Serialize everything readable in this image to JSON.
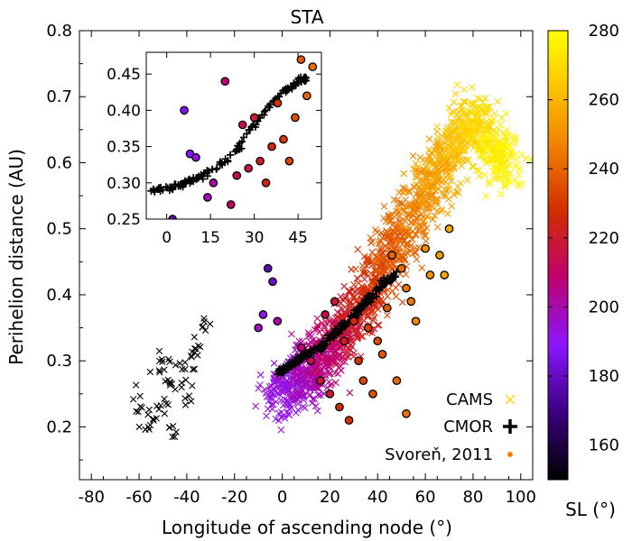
{
  "chart_data": {
    "type": "scatter",
    "title": "STA",
    "xlabel": "Longitude of ascending node (°)",
    "ylabel": "Perihelion distance (AU)",
    "xlim": [
      -85,
      105
    ],
    "ylim": [
      0.12,
      0.8
    ],
    "xticks": [
      -80,
      -60,
      -40,
      -20,
      0,
      20,
      40,
      60,
      80,
      100
    ],
    "yticks": [
      0.2,
      0.3,
      0.4,
      0.5,
      0.6,
      0.7,
      0.8
    ],
    "colorbar": {
      "label": "SL (°)",
      "range": [
        150,
        280
      ],
      "ticks": [
        160,
        180,
        200,
        220,
        240,
        260,
        280
      ],
      "palette": [
        "#000000",
        "#3b0080",
        "#8a16ff",
        "#c0006e",
        "#d32d00",
        "#f28500",
        "#ffd100",
        "#ffff00"
      ]
    },
    "series": [
      {
        "name": "CAMS",
        "marker": "x",
        "legend_color": "#ffd700",
        "trend": [
          [
            -3,
            0.24,
            190
          ],
          [
            5,
            0.27,
            193
          ],
          [
            12,
            0.29,
            200
          ],
          [
            18,
            0.31,
            206
          ],
          [
            25,
            0.34,
            213
          ],
          [
            32,
            0.38,
            221
          ],
          [
            40,
            0.43,
            229
          ],
          [
            48,
            0.48,
            236
          ],
          [
            56,
            0.53,
            243
          ],
          [
            64,
            0.58,
            250
          ],
          [
            72,
            0.63,
            257
          ],
          [
            80,
            0.67,
            264
          ],
          [
            88,
            0.62,
            271
          ],
          [
            95,
            0.6,
            278
          ]
        ],
        "black_cluster": [
          [
            -60,
            0.24
          ],
          [
            -55,
            0.22
          ],
          [
            -50,
            0.23
          ],
          [
            -45,
            0.26
          ],
          [
            -42,
            0.29
          ],
          [
            -38,
            0.3
          ],
          [
            -35,
            0.33
          ],
          [
            -33,
            0.35
          ],
          [
            -48,
            0.28
          ],
          [
            -52,
            0.3
          ],
          [
            -40,
            0.25
          ],
          [
            -57,
            0.2
          ],
          [
            -46,
            0.19
          ]
        ]
      },
      {
        "name": "CMOR",
        "marker": "+",
        "legend_color": "#000000",
        "points": [
          [
            -2,
            0.28,
            186
          ],
          [
            4,
            0.295,
            190
          ],
          [
            10,
            0.31,
            195
          ],
          [
            16,
            0.32,
            200
          ],
          [
            22,
            0.34,
            206
          ],
          [
            28,
            0.36,
            212
          ],
          [
            33,
            0.38,
            217
          ],
          [
            38,
            0.4,
            222
          ],
          [
            43,
            0.42,
            226
          ],
          [
            48,
            0.43,
            230
          ]
        ]
      },
      {
        "name": "Svoreň, 2011",
        "marker": "o",
        "legend_color": "#ff8000",
        "points": [
          [
            -6,
            0.44,
            176
          ],
          [
            -4,
            0.42,
            180
          ],
          [
            -8,
            0.37,
            190
          ],
          [
            -10,
            0.35,
            195
          ],
          [
            -2,
            0.36,
            198
          ],
          [
            8,
            0.32,
            205
          ],
          [
            12,
            0.3,
            210
          ],
          [
            16,
            0.27,
            215
          ],
          [
            20,
            0.25,
            218
          ],
          [
            24,
            0.23,
            222
          ],
          [
            28,
            0.21,
            226
          ],
          [
            18,
            0.37,
            212
          ],
          [
            22,
            0.39,
            215
          ],
          [
            26,
            0.33,
            219
          ],
          [
            30,
            0.36,
            223
          ],
          [
            32,
            0.3,
            226
          ],
          [
            36,
            0.35,
            228
          ],
          [
            40,
            0.33,
            231
          ],
          [
            44,
            0.38,
            234
          ],
          [
            46,
            0.46,
            236
          ],
          [
            50,
            0.44,
            238
          ],
          [
            52,
            0.41,
            240
          ],
          [
            54,
            0.39,
            241
          ],
          [
            56,
            0.36,
            243
          ],
          [
            60,
            0.47,
            245
          ],
          [
            62,
            0.43,
            247
          ],
          [
            66,
            0.46,
            249
          ],
          [
            70,
            0.5,
            251
          ],
          [
            68,
            0.43,
            250
          ],
          [
            34,
            0.27,
            230
          ],
          [
            38,
            0.25,
            232
          ],
          [
            42,
            0.31,
            233
          ],
          [
            48,
            0.27,
            237
          ],
          [
            52,
            0.22,
            239
          ]
        ]
      }
    ],
    "inset": {
      "xlim": [
        -7,
        53
      ],
      "ylim": [
        0.25,
        0.48
      ],
      "xticks": [
        0,
        15,
        30,
        45
      ],
      "yticks": [
        0.25,
        0.3,
        0.35,
        0.4,
        0.45
      ],
      "cmor": [
        [
          -5,
          0.29,
          186
        ],
        [
          0,
          0.292,
          188
        ],
        [
          5,
          0.298,
          192
        ],
        [
          10,
          0.305,
          195
        ],
        [
          15,
          0.315,
          200
        ],
        [
          20,
          0.33,
          206
        ],
        [
          25,
          0.35,
          212
        ],
        [
          30,
          0.38,
          218
        ],
        [
          35,
          0.405,
          223
        ],
        [
          40,
          0.425,
          228
        ],
        [
          45,
          0.44,
          233
        ],
        [
          48,
          0.445,
          236
        ]
      ],
      "svoren": [
        [
          2,
          0.25,
          178
        ],
        [
          6,
          0.4,
          185
        ],
        [
          8,
          0.34,
          188
        ],
        [
          10,
          0.335,
          190
        ],
        [
          14,
          0.28,
          196
        ],
        [
          16,
          0.3,
          198
        ],
        [
          20,
          0.44,
          205
        ],
        [
          22,
          0.27,
          207
        ],
        [
          24,
          0.31,
          209
        ],
        [
          26,
          0.38,
          211
        ],
        [
          28,
          0.32,
          214
        ],
        [
          30,
          0.39,
          216
        ],
        [
          32,
          0.33,
          218
        ],
        [
          34,
          0.3,
          220
        ],
        [
          36,
          0.35,
          222
        ],
        [
          38,
          0.41,
          225
        ],
        [
          40,
          0.36,
          227
        ],
        [
          42,
          0.33,
          229
        ],
        [
          44,
          0.39,
          231
        ],
        [
          46,
          0.47,
          234
        ],
        [
          48,
          0.42,
          236
        ],
        [
          50,
          0.46,
          238
        ]
      ]
    },
    "legend": {
      "position": "bottom-right",
      "entries": [
        "CAMS",
        "CMOR",
        "Svoreň, 2011"
      ]
    }
  }
}
